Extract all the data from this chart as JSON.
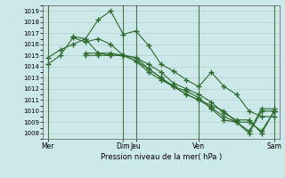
{
  "xlabel": "Pression niveau de la mer( hPa )",
  "ylim": [
    1007.5,
    1019.5
  ],
  "yticks": [
    1008,
    1009,
    1010,
    1011,
    1012,
    1013,
    1014,
    1015,
    1016,
    1017,
    1018,
    1019
  ],
  "background_color": "#cce8e8",
  "grid_color": "#b0c8c8",
  "line_color": "#2d6a2d",
  "marker": "+",
  "series": [
    {
      "x": [
        0,
        0.5,
        1.0,
        1.5,
        2.0,
        2.5,
        3.0,
        3.5,
        4.0,
        4.5,
        5.0,
        5.5,
        6.0,
        6.5,
        7.0,
        7.5,
        8.0,
        8.5,
        9.0
      ],
      "y": [
        1014.2,
        1015.0,
        1016.6,
        1016.2,
        1016.5,
        1016.0,
        1015.0,
        1014.5,
        1013.8,
        1013.0,
        1012.2,
        1011.5,
        1011.0,
        1010.3,
        1009.5,
        1009.0,
        1008.0,
        1010.0,
        1010.0
      ]
    },
    {
      "x": [
        0,
        0.5,
        1.0,
        1.5,
        2.0,
        2.5,
        3.0,
        3.5,
        4.0,
        4.5,
        5.0,
        5.5,
        6.0,
        6.5,
        7.0,
        7.5,
        8.0,
        8.5,
        9.0
      ],
      "y": [
        1014.8,
        1015.5,
        1016.0,
        1016.5,
        1015.2,
        1015.0,
        1015.0,
        1014.5,
        1013.5,
        1012.8,
        1012.2,
        1011.5,
        1011.0,
        1010.5,
        1010.0,
        1009.0,
        1008.2,
        1010.2,
        1010.2
      ]
    },
    {
      "x": [
        1.0,
        1.5,
        2.0,
        2.5,
        3.0,
        3.5,
        4.0,
        4.5,
        5.0,
        5.5,
        6.0,
        6.5,
        7.0,
        7.5,
        8.0,
        8.5,
        9.0
      ],
      "y": [
        1016.7,
        1016.5,
        1018.2,
        1019.0,
        1016.9,
        1017.2,
        1015.9,
        1014.2,
        1013.6,
        1012.8,
        1012.2,
        1013.5,
        1012.2,
        1011.5,
        1010.0,
        1009.5,
        1009.5
      ]
    },
    {
      "x": [
        1.5,
        2.0,
        2.5,
        3.0,
        3.5,
        4.0,
        4.5,
        5.0,
        5.5,
        6.0,
        6.5,
        7.0,
        7.5,
        8.0,
        8.5,
        9.0
      ],
      "y": [
        1015.0,
        1015.0,
        1015.0,
        1015.0,
        1014.8,
        1014.2,
        1013.5,
        1012.5,
        1012.0,
        1011.5,
        1010.8,
        1009.8,
        1009.2,
        1009.2,
        1008.0,
        1010.0
      ]
    },
    {
      "x": [
        1.5,
        2.0,
        2.5,
        3.0,
        3.5,
        4.0,
        4.5,
        5.0,
        5.5,
        6.0,
        6.5,
        7.0,
        7.5,
        8.0,
        8.5,
        9.0
      ],
      "y": [
        1015.2,
        1015.2,
        1015.2,
        1015.0,
        1014.8,
        1013.8,
        1013.0,
        1012.2,
        1011.8,
        1011.2,
        1010.2,
        1009.2,
        1009.0,
        1009.0,
        1008.2,
        1010.0
      ]
    }
  ],
  "vlines_x": [
    0,
    3.0,
    3.5,
    6.0,
    9.0
  ],
  "xtick_positions": [
    0,
    3.0,
    3.5,
    6.0,
    9.0
  ],
  "xtick_labels": [
    "Mer",
    "Dim",
    "Jeu",
    "Ven",
    "Sam"
  ],
  "xlim": [
    -0.2,
    9.2
  ],
  "figsize": [
    3.2,
    2.0
  ],
  "dpi": 100
}
